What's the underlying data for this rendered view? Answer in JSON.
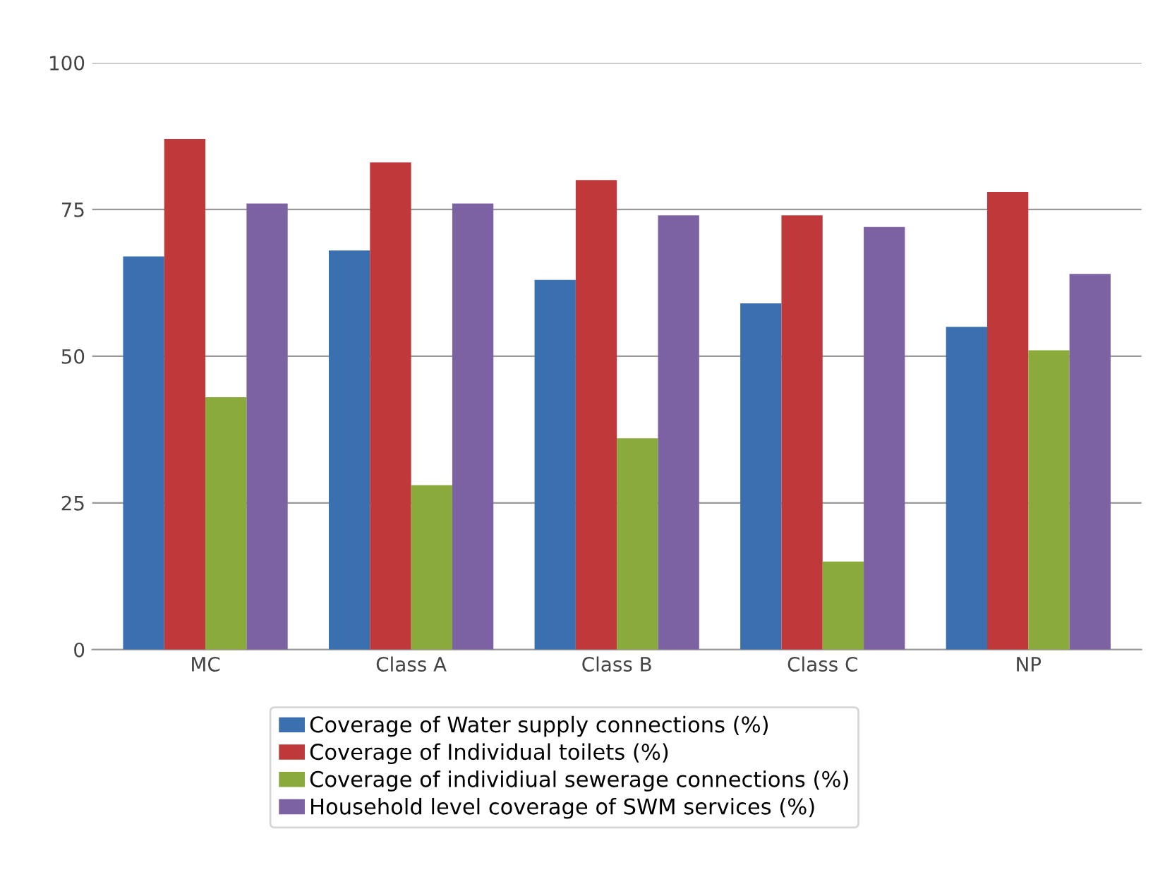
{
  "chart_data": {
    "type": "bar",
    "categories": [
      "MC",
      "Class A",
      "Class B",
      "Class C",
      "NP"
    ],
    "series": [
      {
        "name": "Coverage of Water supply connections (%)",
        "color": "#3a6fb0",
        "values": [
          67,
          68,
          63,
          59,
          55
        ]
      },
      {
        "name": "Coverage of Individual toilets (%)",
        "color": "#c0393a",
        "values": [
          87,
          83,
          80,
          74,
          78
        ]
      },
      {
        "name": "Coverage of individiual sewerage connections (%)",
        "color": "#8aab3c",
        "values": [
          43,
          28,
          36,
          15,
          51
        ]
      },
      {
        "name": "Household level coverage of SWM services (%)",
        "color": "#7d62a3",
        "values": [
          76,
          76,
          74,
          72,
          64
        ]
      }
    ],
    "ylim": [
      0,
      100
    ],
    "yticks": [
      0,
      25,
      50,
      75,
      100
    ],
    "grid": "y",
    "legend": "bottom"
  }
}
